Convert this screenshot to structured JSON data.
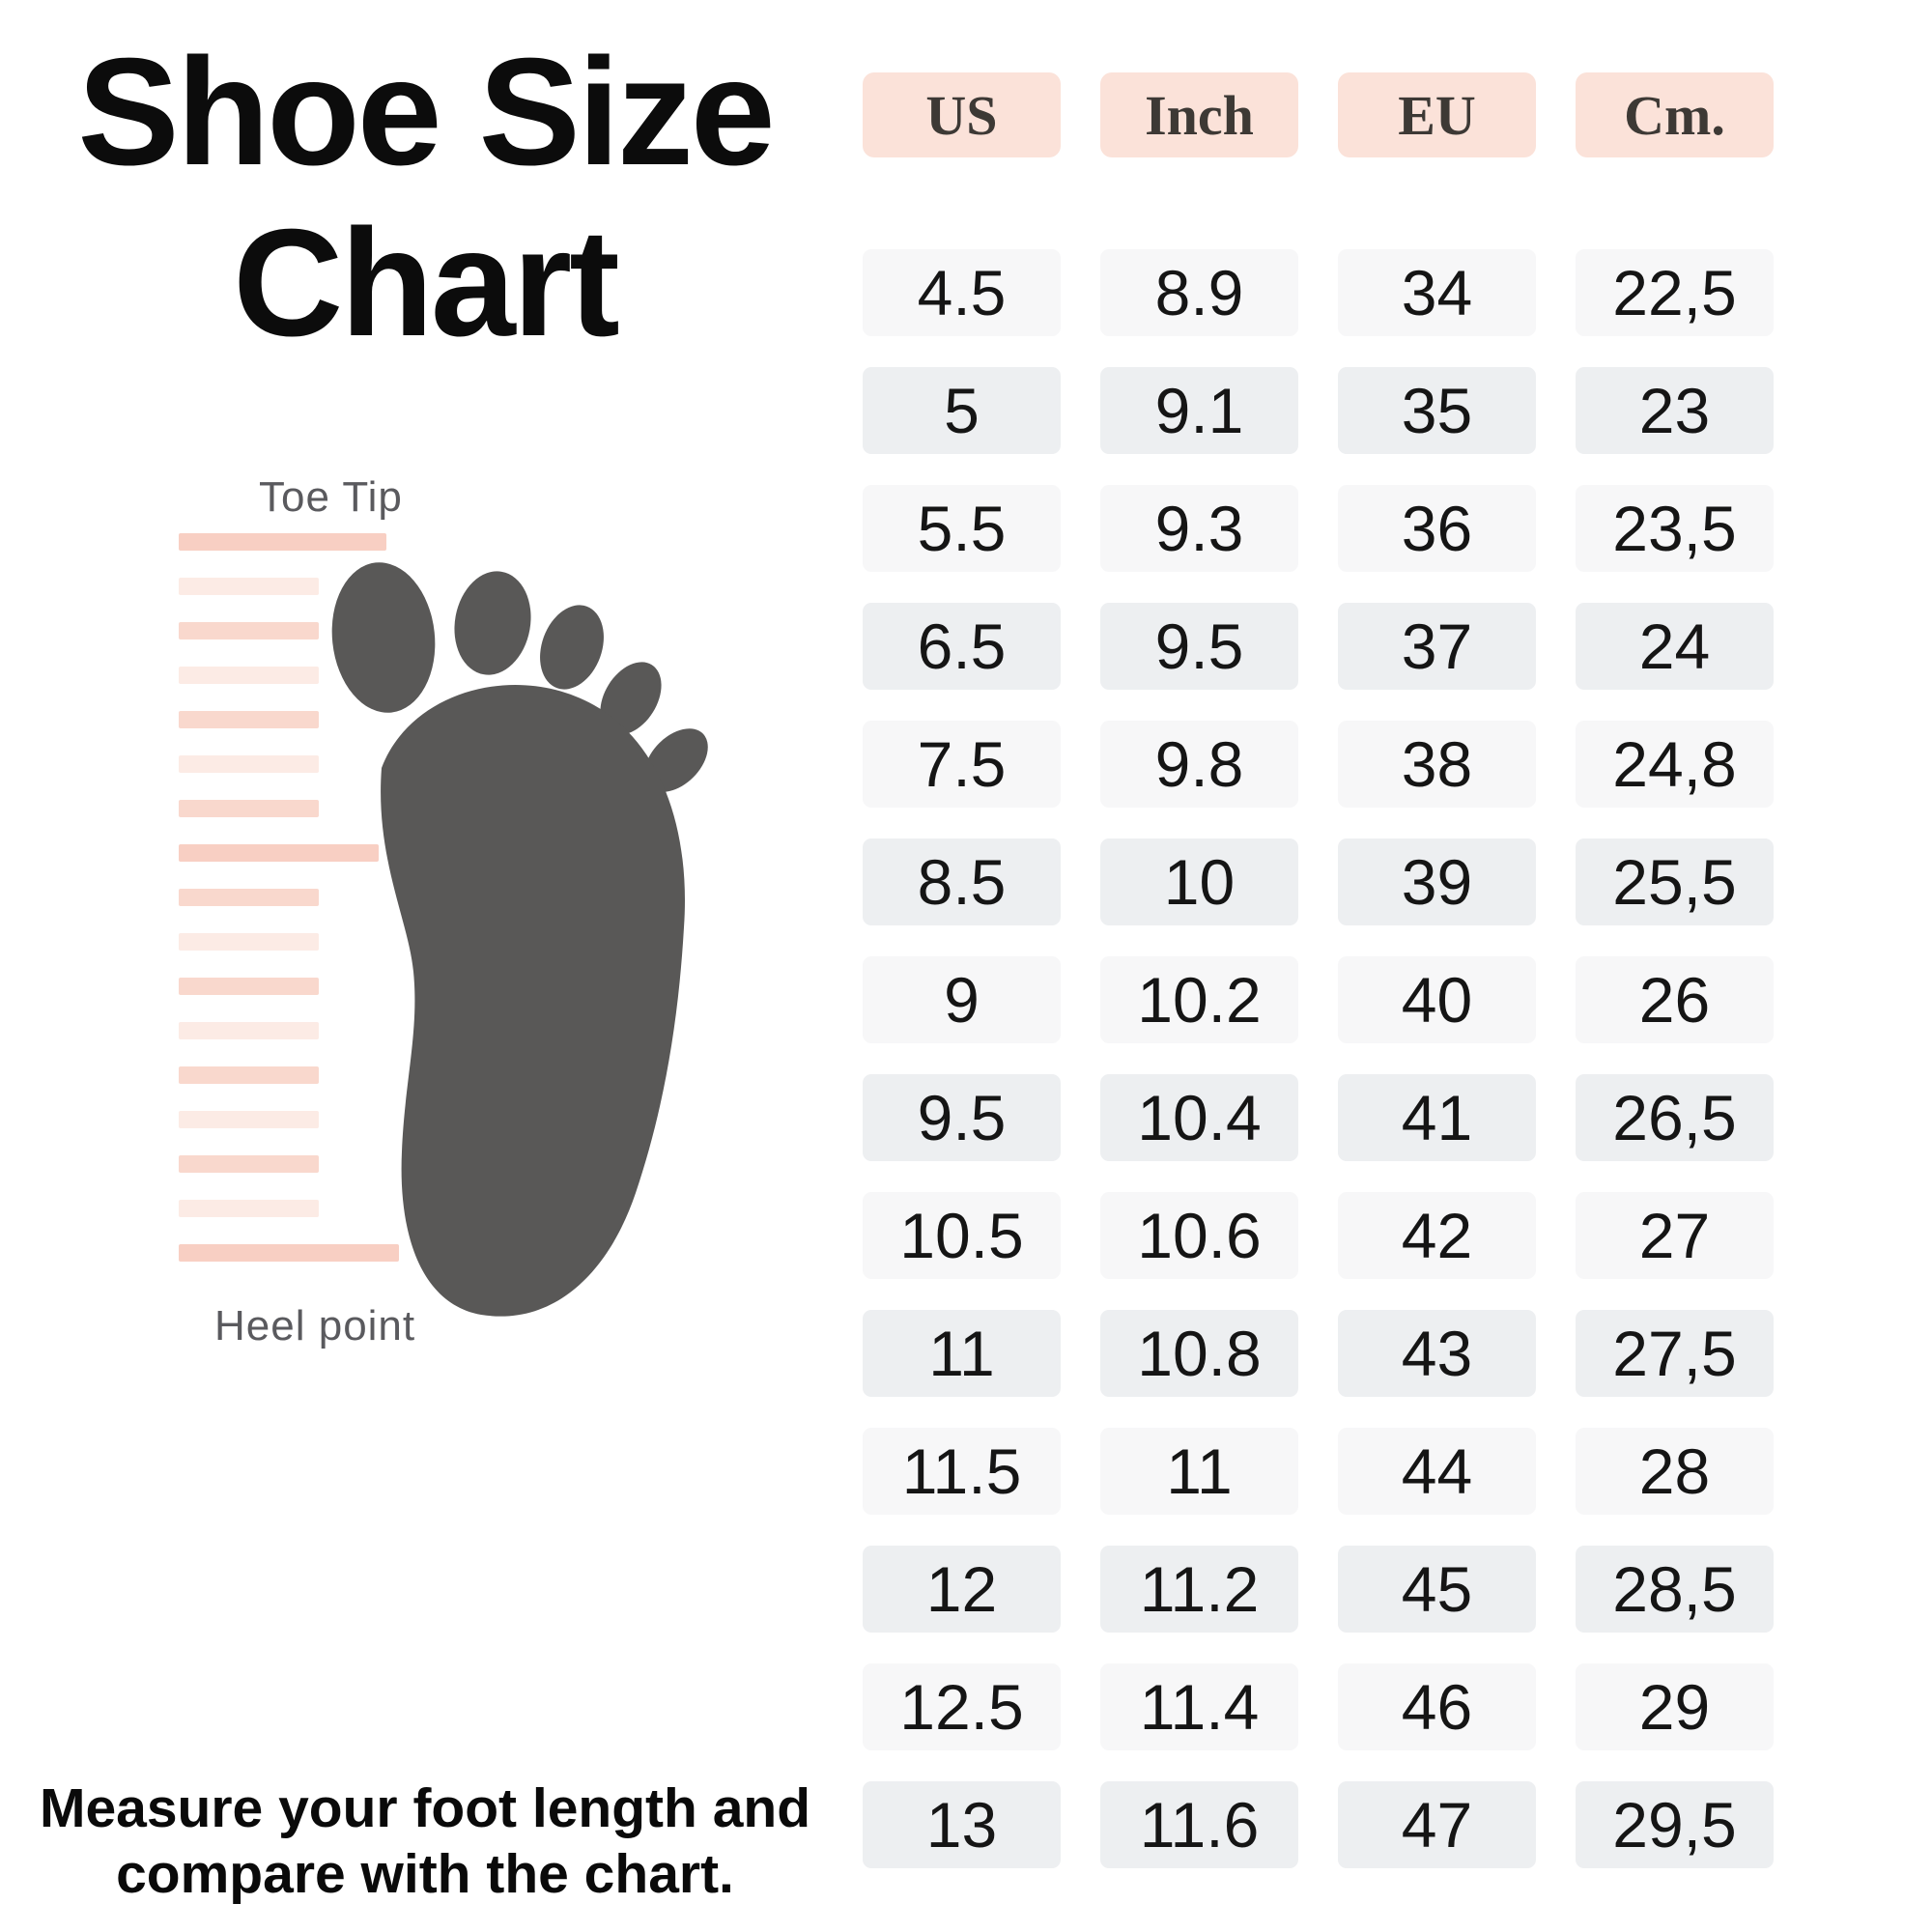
{
  "title": {
    "line1": "Shoe Size",
    "line2": "Chart"
  },
  "diagram": {
    "top_label": "Toe Tip",
    "bottom_label": "Heel point"
  },
  "footer": {
    "line1": "Measure your foot length and",
    "line2": "compare with the chart."
  },
  "chart_data": {
    "type": "table",
    "title": "Shoe Size Chart",
    "columns": [
      "US",
      "Inch",
      "EU",
      "Cm."
    ],
    "rows": [
      [
        "4.5",
        "8.9",
        "34",
        "22,5"
      ],
      [
        "5",
        "9.1",
        "35",
        "23"
      ],
      [
        "5.5",
        "9.3",
        "36",
        "23,5"
      ],
      [
        "6.5",
        "9.5",
        "37",
        "24"
      ],
      [
        "7.5",
        "9.8",
        "38",
        "24,8"
      ],
      [
        "8.5",
        "10",
        "39",
        "25,5"
      ],
      [
        "9",
        "10.2",
        "40",
        "26"
      ],
      [
        "9.5",
        "10.4",
        "41",
        "26,5"
      ],
      [
        "10.5",
        "10.6",
        "42",
        "27"
      ],
      [
        "11",
        "10.8",
        "43",
        "27,5"
      ],
      [
        "11.5",
        "11",
        "44",
        "28"
      ],
      [
        "12",
        "11.2",
        "45",
        "28,5"
      ],
      [
        "12.5",
        "11.4",
        "46",
        "29"
      ],
      [
        "13",
        "11.6",
        "47",
        "29,5"
      ]
    ]
  },
  "colors": {
    "header_bg": "#fbe2d9",
    "header_text": "#3d3935",
    "row_light": "#f7f7f8",
    "row_dark": "#edeff1",
    "ruler_stripe": "#f9d8cd",
    "ruler_stripe_faint": "#fcebe5",
    "ruler_marker": "#f8cfc3",
    "foot": "#595857",
    "label_gray": "#5a5a5e"
  }
}
